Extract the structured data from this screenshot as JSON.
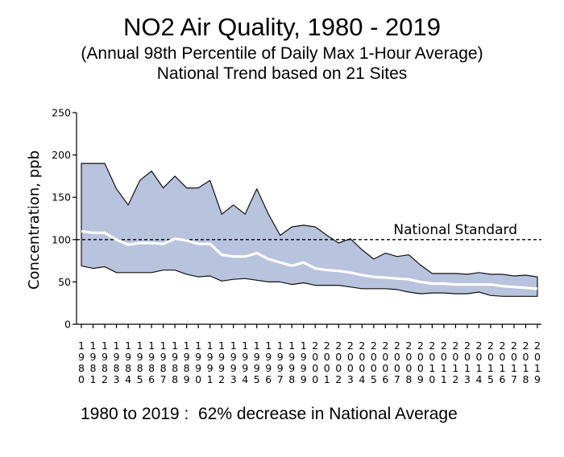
{
  "chart_data": {
    "type": "area",
    "title": "NO2 Air Quality, 1980 - 2019",
    "subtitle_lines": [
      "(Annual 98th Percentile of Daily Max 1-Hour Average)",
      "National Trend based on 21 Sites"
    ],
    "xlabel": "",
    "ylabel": "Concentration, ppb",
    "ylim": [
      0,
      250
    ],
    "yticks": [
      0,
      50,
      100,
      150,
      200,
      250
    ],
    "x": [
      1980,
      1981,
      1982,
      1983,
      1984,
      1985,
      1986,
      1987,
      1988,
      1989,
      1990,
      1991,
      1992,
      1993,
      1994,
      1995,
      1996,
      1997,
      1998,
      1999,
      2000,
      2001,
      2002,
      2003,
      2004,
      2005,
      2006,
      2007,
      2008,
      2009,
      2010,
      2011,
      2012,
      2013,
      2014,
      2015,
      2016,
      2017,
      2018,
      2019
    ],
    "x_tick_labels": [
      "1980",
      "1981",
      "1982",
      "1983",
      "1984",
      "1985",
      "1986",
      "1987",
      "1988",
      "1989",
      "1990",
      "1991",
      "1992",
      "1993",
      "1994",
      "1995",
      "1996",
      "1997",
      "1998",
      "1999",
      "2000",
      "2001",
      "2002",
      "2003",
      "2004",
      "2005",
      "2006",
      "2007",
      "2008",
      "2009",
      "2010",
      "2011",
      "2012",
      "2013",
      "2014",
      "2015",
      "2016",
      "2017",
      "2018",
      "2019"
    ],
    "series": [
      {
        "role": "upper",
        "values": [
          190,
          190,
          190,
          160,
          141,
          170,
          181,
          161,
          175,
          161,
          161,
          170,
          130,
          141,
          130,
          160,
          130,
          105,
          115,
          117,
          115,
          105,
          96,
          101,
          88,
          77,
          84,
          80,
          82,
          70,
          60,
          60,
          60,
          59,
          61,
          59,
          59,
          57,
          58,
          56
        ]
      },
      {
        "role": "average",
        "values": [
          110,
          108,
          108,
          100,
          94,
          96,
          96,
          95,
          101,
          99,
          95,
          95,
          82,
          80,
          80,
          84,
          77,
          73,
          69,
          73,
          66,
          64,
          63,
          61,
          58,
          56,
          55,
          54,
          53,
          50,
          48,
          48,
          47,
          47,
          47,
          47,
          45,
          44,
          43,
          42
        ]
      },
      {
        "role": "lower",
        "values": [
          69,
          66,
          68,
          61,
          61,
          61,
          61,
          64,
          64,
          59,
          56,
          57,
          51,
          53,
          54,
          52,
          50,
          50,
          47,
          49,
          46,
          46,
          46,
          44,
          42,
          42,
          42,
          41,
          38,
          36,
          37,
          37,
          36,
          36,
          38,
          34,
          33,
          33,
          33,
          33
        ]
      }
    ],
    "reference_line": {
      "label": "National Standard",
      "value": 100
    },
    "grid": false,
    "legend": "none",
    "colors": {
      "band": "#b8c3dd",
      "band_edge": "#111111",
      "average": "#ffffff",
      "standard": "#000000"
    }
  },
  "footnote": "1980 to 2019 :  62% decrease in National Average"
}
